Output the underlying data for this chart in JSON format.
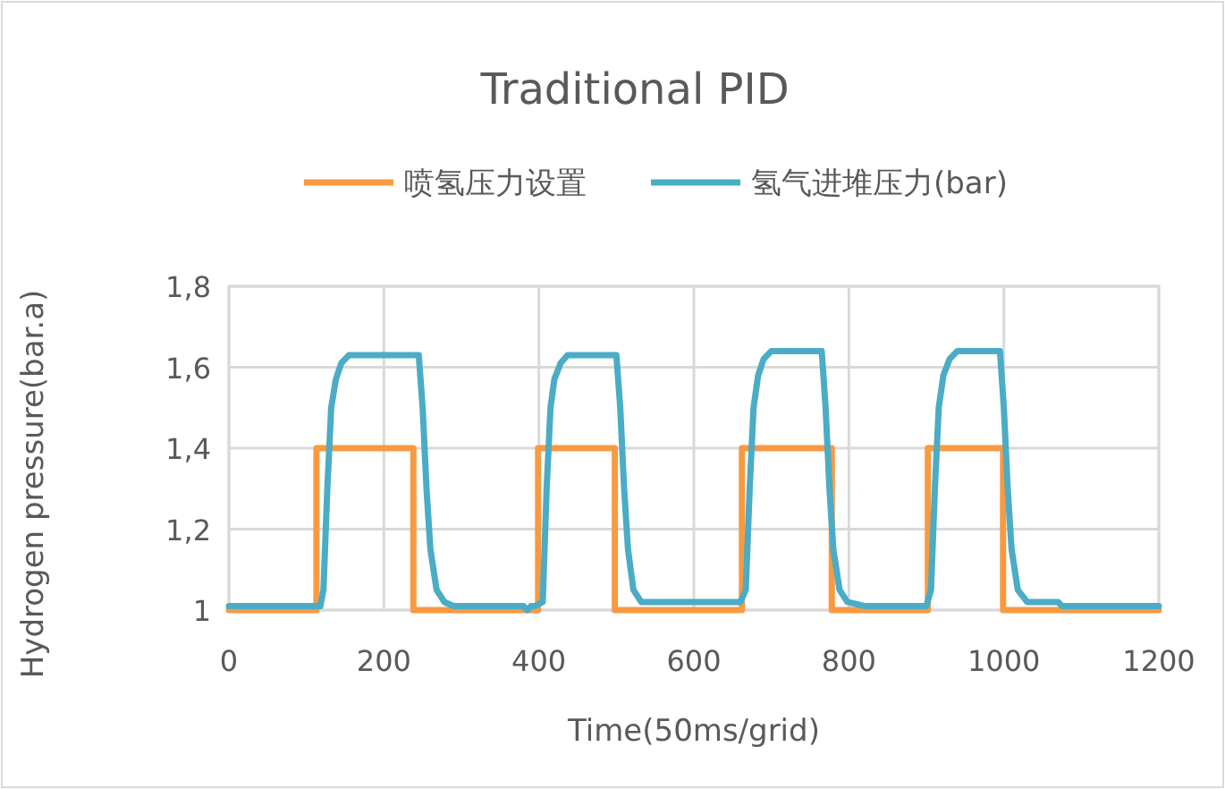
{
  "chart_data": {
    "type": "line",
    "title": "Traditional PID",
    "xlabel": "Time(50ms/grid)",
    "ylabel": "Hydrogen pressure(bar.a)",
    "xlim": [
      0,
      1200
    ],
    "xticks": [
      0,
      200,
      400,
      600,
      800,
      1000,
      1200
    ],
    "ylim": [
      1,
      1.8
    ],
    "yticks": [
      {
        "value": 1,
        "label": "1"
      },
      {
        "value": 1.2,
        "label": "1,2"
      },
      {
        "value": 1.4,
        "label": "1,4"
      },
      {
        "value": 1.6,
        "label": "1,6"
      },
      {
        "value": 1.8,
        "label": "1,8"
      }
    ],
    "grid": true,
    "legend": "top",
    "series": [
      {
        "name": "喷氢压力设置",
        "color": "#f79a42",
        "x": [
          0,
          113,
          113,
          238,
          238,
          399,
          399,
          498,
          498,
          662,
          662,
          778,
          778,
          902,
          902,
          999,
          999,
          1200
        ],
        "values": [
          1,
          1,
          1.4,
          1.4,
          1,
          1,
          1.4,
          1.4,
          1,
          1,
          1.4,
          1.4,
          1,
          1,
          1.4,
          1.4,
          1,
          1
        ]
      },
      {
        "name": "氢气进堆压力(bar)",
        "color": "#4bacc6",
        "x": [
          0,
          118,
          122,
          127,
          132,
          138,
          145,
          155,
          245,
          250,
          255,
          260,
          268,
          278,
          290,
          380,
          385,
          390,
          395,
          405,
          410,
          415,
          420,
          428,
          437,
          500,
          505,
          510,
          515,
          522,
          532,
          545,
          660,
          667,
          672,
          677,
          683,
          690,
          700,
          765,
          770,
          775,
          780,
          788,
          798,
          820,
          900,
          906,
          911,
          916,
          922,
          930,
          940,
          995,
          1000,
          1005,
          1010,
          1018,
          1030,
          1070,
          1075,
          1200
        ],
        "values": [
          1.01,
          1.01,
          1.05,
          1.3,
          1.5,
          1.57,
          1.61,
          1.63,
          1.63,
          1.5,
          1.3,
          1.15,
          1.05,
          1.02,
          1.01,
          1.01,
          1,
          1.01,
          1.01,
          1.02,
          1.3,
          1.5,
          1.57,
          1.61,
          1.63,
          1.63,
          1.5,
          1.3,
          1.15,
          1.05,
          1.02,
          1.02,
          1.02,
          1.05,
          1.3,
          1.5,
          1.58,
          1.62,
          1.64,
          1.64,
          1.5,
          1.3,
          1.15,
          1.05,
          1.02,
          1.01,
          1.01,
          1.05,
          1.3,
          1.5,
          1.58,
          1.62,
          1.64,
          1.64,
          1.5,
          1.3,
          1.15,
          1.05,
          1.02,
          1.02,
          1.01,
          1.01
        ]
      }
    ]
  }
}
